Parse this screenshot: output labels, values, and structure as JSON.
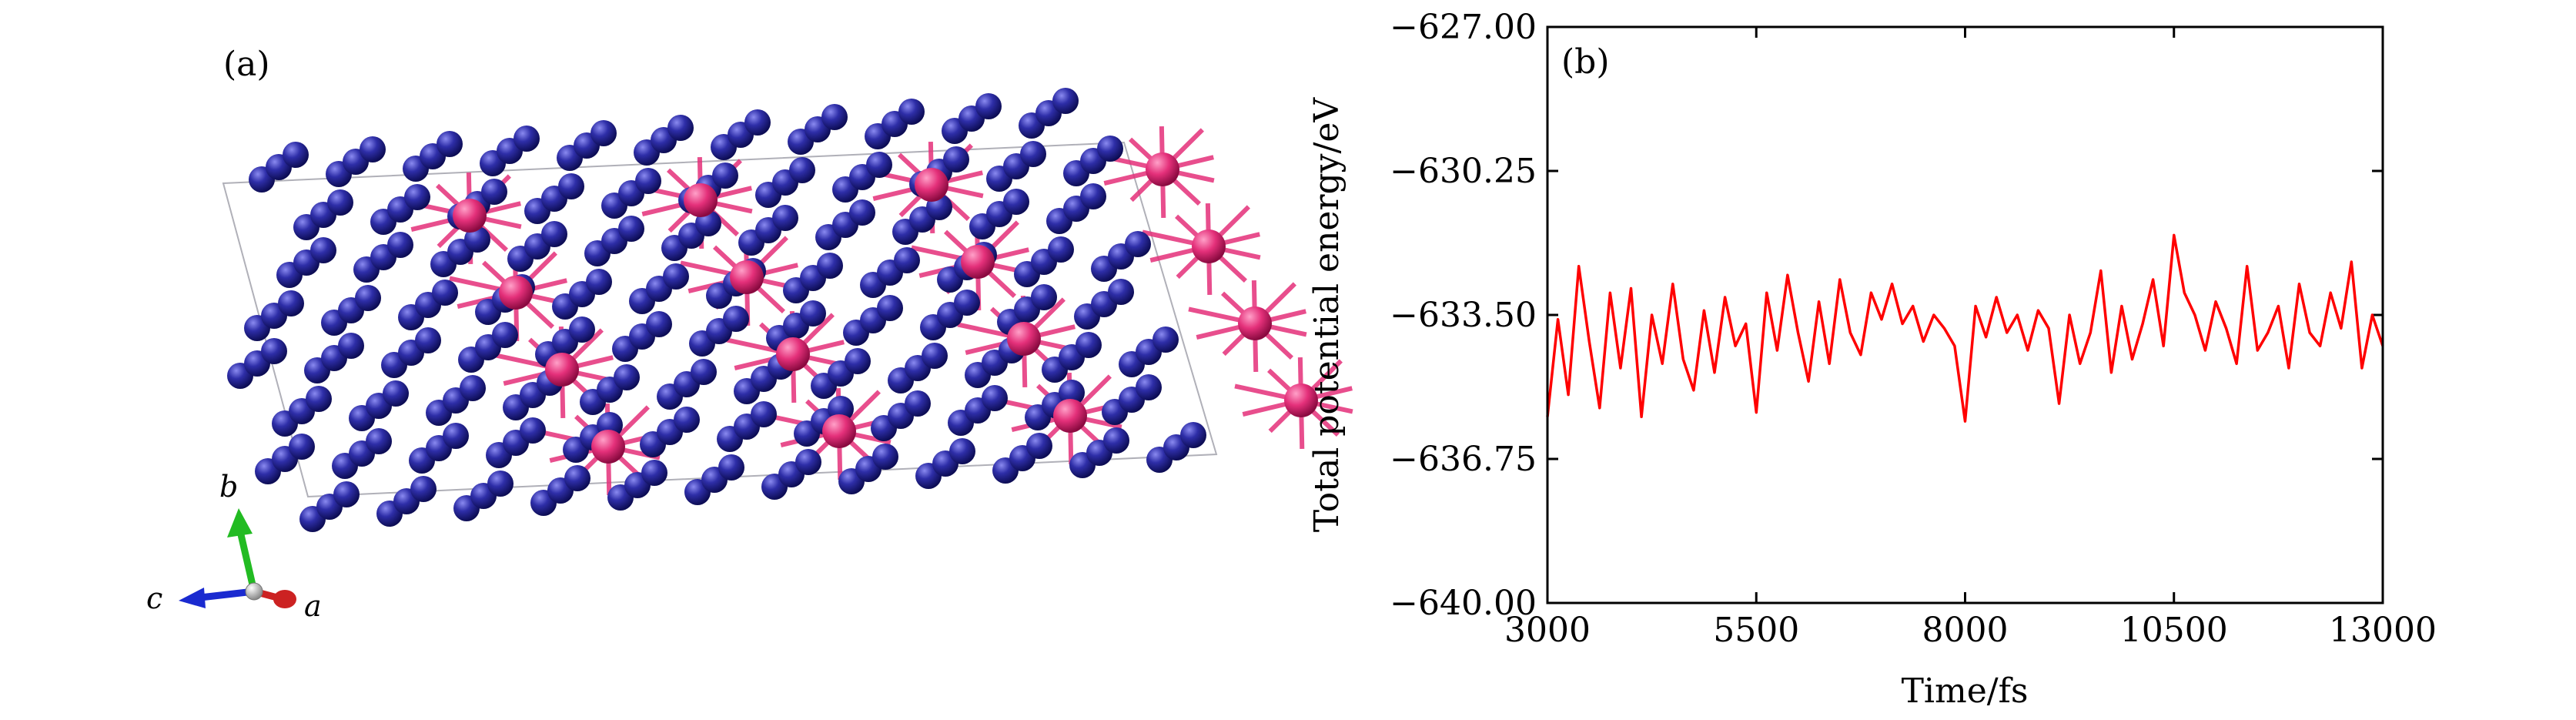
{
  "panel_a": {
    "label": "(a)",
    "axis_labels": {
      "a": "a",
      "b": "b",
      "c": "c"
    },
    "colors": {
      "atom_blue": "#2a2a9a",
      "atom_blue_highlight": "#7878e6",
      "atom_pink": "#e4307a",
      "axis_a": "#cc2222",
      "axis_b": "#22bb22",
      "axis_c": "#1a2ad0"
    }
  },
  "chart_data": {
    "type": "line",
    "panel_label": "(b)",
    "xlabel": "Time/fs",
    "ylabel": "Total potential energy/eV",
    "xlim": [
      3000,
      13000
    ],
    "ylim": [
      -640.0,
      -627.0
    ],
    "xticks": [
      "3000",
      "5500",
      "8000",
      "10500",
      "13000"
    ],
    "yticks": [
      "−627.00",
      "−630.25",
      "−633.50",
      "−636.75",
      "−640.00"
    ],
    "grid": false,
    "line_color": "#ff0000",
    "series": [
      {
        "x": [
          3000,
          3125,
          3250,
          3375,
          3500,
          3625,
          3750,
          3875,
          4000,
          4125,
          4250,
          4375,
          4500,
          4625,
          4750,
          4875,
          5000,
          5125,
          5250,
          5375,
          5500,
          5625,
          5750,
          5875,
          6000,
          6125,
          6250,
          6375,
          6500,
          6625,
          6750,
          6875,
          7000,
          7125,
          7250,
          7375,
          7500,
          7625,
          7750,
          7875,
          8000,
          8125,
          8250,
          8375,
          8500,
          8625,
          8750,
          8875,
          9000,
          9125,
          9250,
          9375,
          9500,
          9625,
          9750,
          9875,
          10000,
          10125,
          10250,
          10375,
          10500,
          10625,
          10750,
          10875,
          11000,
          11125,
          11250,
          11375,
          11500,
          11625,
          11750,
          11875,
          12000,
          12125,
          12250,
          12375,
          12500,
          12625,
          12750,
          12875,
          13000
        ],
        "y": [
          -635.8,
          -633.6,
          -635.3,
          -632.4,
          -634.1,
          -635.6,
          -633.0,
          -634.7,
          -632.9,
          -635.8,
          -633.5,
          -634.6,
          -632.8,
          -634.5,
          -635.2,
          -633.4,
          -634.8,
          -633.1,
          -634.2,
          -633.7,
          -635.7,
          -633.0,
          -634.3,
          -632.6,
          -633.9,
          -635.0,
          -633.2,
          -634.6,
          -632.7,
          -633.9,
          -634.4,
          -633.0,
          -633.6,
          -632.8,
          -633.7,
          -633.3,
          -634.1,
          -633.5,
          -633.8,
          -634.2,
          -635.9,
          -633.3,
          -634.0,
          -633.1,
          -633.9,
          -633.5,
          -634.3,
          -633.4,
          -633.8,
          -635.5,
          -633.5,
          -634.6,
          -633.9,
          -632.5,
          -634.8,
          -633.3,
          -634.5,
          -633.7,
          -632.7,
          -634.2,
          -631.7,
          -633.0,
          -633.5,
          -634.3,
          -633.2,
          -633.8,
          -634.6,
          -632.4,
          -634.3,
          -633.9,
          -633.3,
          -634.7,
          -632.8,
          -633.9,
          -634.2,
          -633.0,
          -633.8,
          -632.3,
          -634.7,
          -633.5,
          -634.2
        ]
      }
    ]
  }
}
